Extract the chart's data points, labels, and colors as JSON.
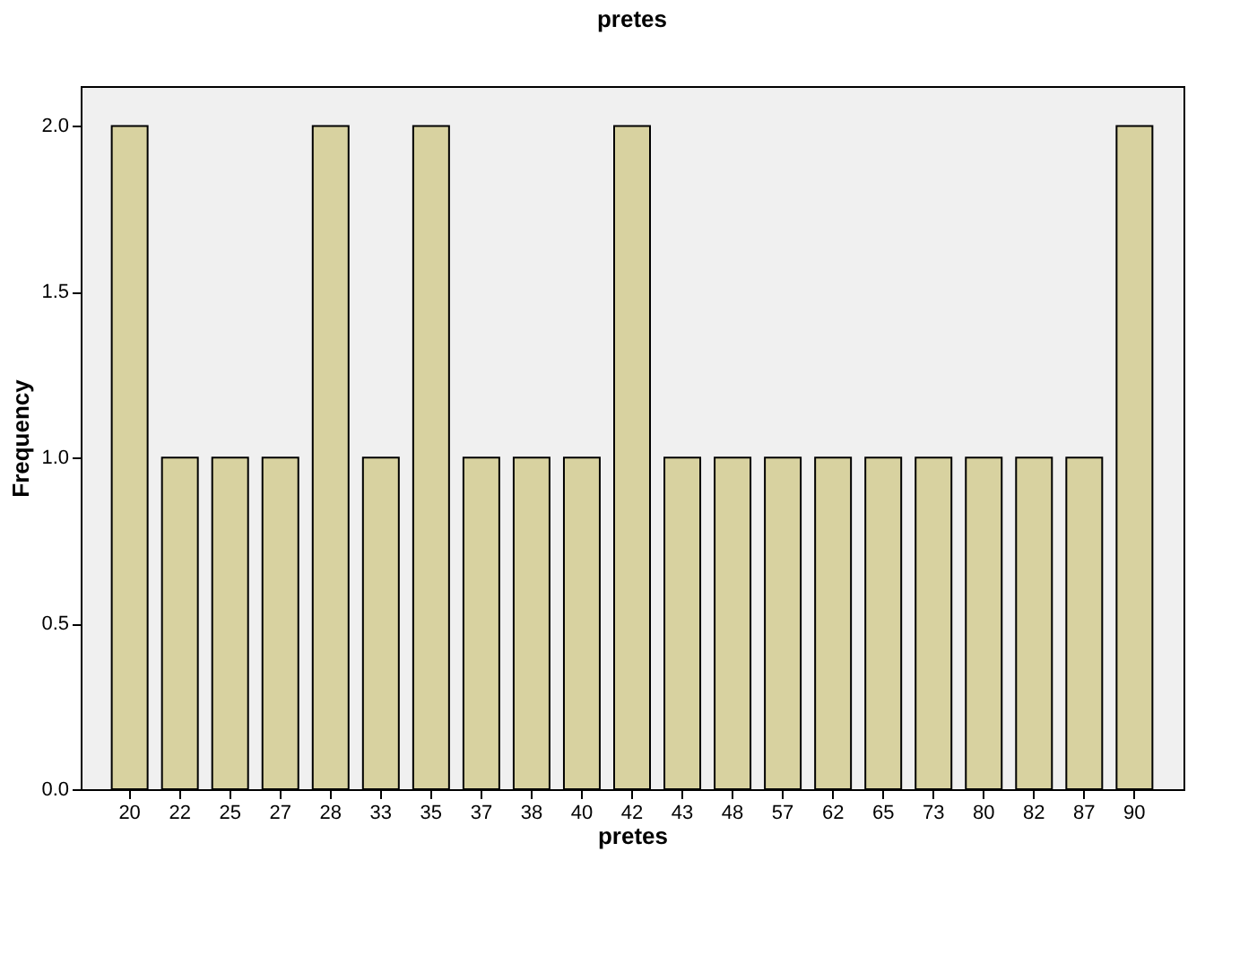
{
  "chart_data": {
    "type": "bar",
    "title": "pretes",
    "xlabel": "pretes",
    "ylabel": "Frequency",
    "categories": [
      "20",
      "22",
      "25",
      "27",
      "28",
      "33",
      "35",
      "37",
      "38",
      "40",
      "42",
      "43",
      "48",
      "57",
      "62",
      "65",
      "73",
      "80",
      "82",
      "87",
      "90"
    ],
    "values": [
      2,
      1,
      1,
      1,
      2,
      1,
      2,
      1,
      1,
      1,
      2,
      1,
      1,
      1,
      1,
      1,
      1,
      1,
      1,
      1,
      2
    ],
    "color": "#d8d2a0",
    "ylim": [
      0,
      2.12
    ],
    "yticks": [
      {
        "value": 0,
        "label": "0.0"
      },
      {
        "value": 0.5,
        "label": "0.5"
      },
      {
        "value": 1,
        "label": "1.0"
      },
      {
        "value": 1.5,
        "label": "1.5"
      },
      {
        "value": 2,
        "label": "2.0"
      }
    ],
    "grid": false
  }
}
